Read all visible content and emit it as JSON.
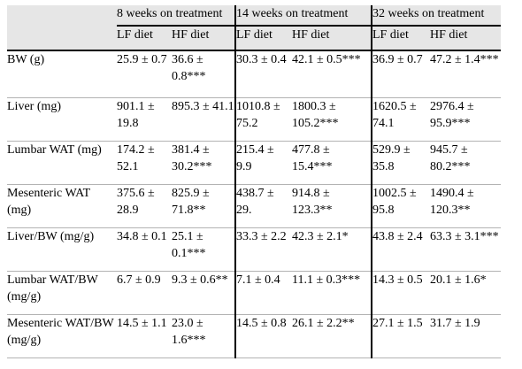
{
  "header": {
    "groups": [
      "8 weeks on treatment",
      "14 weeks on treatment",
      "32 weeks on treatment"
    ],
    "subheaders": [
      "LF diet",
      "HF diet",
      "LF diet",
      "HF diet",
      "LF diet",
      "HF diet"
    ]
  },
  "rows": [
    {
      "label": "BW (g)",
      "cells": [
        "25.9 ± 0.7",
        "36.6 ± 0.8***",
        "30.3 ± 0.4",
        "42.1 ± 0.5***",
        "36.9 ± 0.7",
        "47.2 ± 1.4***"
      ]
    },
    {
      "label": "Liver (mg)",
      "cells": [
        "901.1 ± 19.8",
        "895.3 ± 41.1",
        "1010.8 ± 75.2",
        "1800.3 ± 105.2***",
        "1620.5 ± 74.1",
        "2976.4 ± 95.9***"
      ]
    },
    {
      "label": "Lumbar WAT (mg)",
      "cells": [
        "174.2 ± 52.1",
        "381.4 ± 30.2***",
        "215.4 ± 9.9",
        "477.8 ± 15.4***",
        "529.9 ± 35.8",
        "945.7 ± 80.2***"
      ]
    },
    {
      "label": "Mesenteric WAT (mg)",
      "cells": [
        "375.6 ± 28.9",
        "825.9 ± 71.8**",
        "438.7 ± 29.",
        "914.8 ± 123.3**",
        "1002.5 ± 95.8",
        "1490.4 ± 120.3**"
      ]
    },
    {
      "label": "Liver/BW (mg/g)",
      "cells": [
        "34.8 ± 0.1",
        "25.1 ± 0.1***",
        "33.3 ± 2.2",
        "42.3 ± 2.1*",
        "43.8 ± 2.4",
        "63.3 ± 3.1***"
      ]
    },
    {
      "label": "Lumbar WAT/BW (mg/g)",
      "cells": [
        "6.7 ± 0.9",
        "9.3 ± 0.6**",
        "7.1 ± 0.4",
        "11.1 ± 0.3***",
        "14.3 ± 0.5",
        "20.1 ± 1.6*"
      ]
    },
    {
      "label": "Mesenteric WAT/BW (mg/g)",
      "cells": [
        "14.5 ± 1.1",
        "23.0 ± 1.6***",
        "14.5 ± 0.8",
        "26.1 ± 2.2**",
        "27.1 ± 1.5",
        "31.7 ± 1.9"
      ]
    }
  ]
}
